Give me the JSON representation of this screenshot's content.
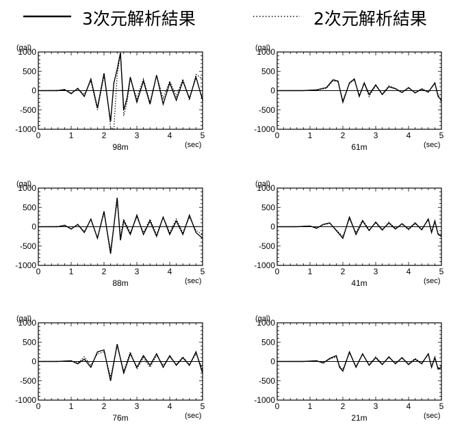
{
  "legend": {
    "solid_label": "3次元解析結果",
    "dotted_label": "2次元解析結果"
  },
  "colors": {
    "ink": "#000000",
    "background": "#ffffff"
  },
  "chart_data": [
    {
      "type": "line",
      "caption": "98m",
      "ylabel": "(gal)",
      "xlabel": "(sec)",
      "xlim": [
        0,
        5
      ],
      "ylim": [
        -1000,
        1000
      ],
      "xticks": [
        "0",
        "1",
        "2",
        "3",
        "4",
        "5"
      ],
      "yticks": [
        "1000",
        "500",
        "0",
        "-500",
        "-1000"
      ],
      "series": [
        {
          "style": "solid",
          "x": [
            0,
            0.6,
            0.8,
            1.0,
            1.2,
            1.4,
            1.6,
            1.8,
            2.0,
            2.1,
            2.2,
            2.3,
            2.4,
            2.5,
            2.6,
            2.7,
            2.8,
            3.0,
            3.2,
            3.4,
            3.6,
            3.8,
            4.0,
            4.2,
            4.4,
            4.6,
            4.8,
            5.0
          ],
          "y": [
            0,
            0,
            30,
            -80,
            60,
            -150,
            300,
            -450,
            450,
            -200,
            -800,
            200,
            550,
            980,
            -500,
            -200,
            350,
            -300,
            250,
            -350,
            400,
            -350,
            200,
            -250,
            250,
            -200,
            350,
            -250
          ]
        },
        {
          "style": "dotted",
          "x": [
            0,
            0.6,
            0.8,
            1.0,
            1.2,
            1.4,
            1.6,
            1.8,
            2.0,
            2.1,
            2.2,
            2.3,
            2.4,
            2.5,
            2.6,
            2.7,
            2.8,
            3.0,
            3.2,
            3.4,
            3.6,
            3.8,
            4.0,
            4.2,
            4.4,
            4.6,
            4.8,
            5.0
          ],
          "y": [
            0,
            10,
            20,
            -60,
            40,
            -100,
            250,
            -500,
            380,
            -150,
            -950,
            -1000,
            400,
            950,
            -650,
            -300,
            300,
            -200,
            300,
            -300,
            400,
            -200,
            250,
            -150,
            300,
            -250,
            420,
            300
          ]
        }
      ]
    },
    {
      "type": "line",
      "caption": "61m",
      "ylabel": "(gal)",
      "xlabel": "(sec)",
      "xlim": [
        0,
        5
      ],
      "ylim": [
        -1000,
        1000
      ],
      "xticks": [
        "0",
        "1",
        "2",
        "3",
        "4",
        "5"
      ],
      "yticks": [
        "1000",
        "500",
        "0",
        "-500",
        "-1000"
      ],
      "series": [
        {
          "style": "solid",
          "x": [
            0,
            0.8,
            1.2,
            1.5,
            1.7,
            1.85,
            2.0,
            2.2,
            2.35,
            2.5,
            2.65,
            2.8,
            3.0,
            3.2,
            3.4,
            3.6,
            3.8,
            4.0,
            4.2,
            4.4,
            4.6,
            4.8,
            4.9,
            5.0
          ],
          "y": [
            0,
            0,
            20,
            80,
            280,
            250,
            -300,
            200,
            300,
            -150,
            200,
            -100,
            150,
            -100,
            100,
            50,
            -50,
            80,
            -60,
            40,
            -40,
            200,
            -150,
            -250
          ]
        },
        {
          "style": "dotted",
          "x": [
            0,
            0.8,
            1.2,
            1.5,
            1.7,
            1.85,
            2.0,
            2.2,
            2.35,
            2.5,
            2.65,
            2.8,
            3.0,
            3.2,
            3.4,
            3.6,
            3.8,
            4.0,
            4.2,
            4.4,
            4.6,
            4.8,
            4.9,
            5.0
          ],
          "y": [
            0,
            5,
            15,
            60,
            250,
            230,
            -250,
            180,
            280,
            -120,
            180,
            -150,
            120,
            -80,
            120,
            60,
            -40,
            60,
            -50,
            50,
            -30,
            180,
            -100,
            -300
          ]
        }
      ]
    },
    {
      "type": "line",
      "caption": "88m",
      "ylabel": "(gal)",
      "xlabel": "(sec)",
      "xlim": [
        0,
        5
      ],
      "ylim": [
        -1000,
        1000
      ],
      "xticks": [
        "0",
        "1",
        "2",
        "3",
        "4",
        "5"
      ],
      "yticks": [
        "1000",
        "500",
        "0",
        "-500",
        "-1000"
      ],
      "series": [
        {
          "style": "solid",
          "x": [
            0,
            0.6,
            0.8,
            1.0,
            1.2,
            1.4,
            1.6,
            1.8,
            2.0,
            2.2,
            2.4,
            2.5,
            2.6,
            2.8,
            3.0,
            3.2,
            3.4,
            3.6,
            3.8,
            4.0,
            4.2,
            4.4,
            4.6,
            4.8,
            5.0
          ],
          "y": [
            0,
            0,
            40,
            -60,
            60,
            -150,
            200,
            -300,
            400,
            -700,
            750,
            -350,
            150,
            -200,
            300,
            -200,
            150,
            -250,
            250,
            -200,
            150,
            -200,
            300,
            -150,
            -300
          ]
        },
        {
          "style": "dotted",
          "x": [
            0,
            0.6,
            0.8,
            1.0,
            1.2,
            1.4,
            1.6,
            1.8,
            2.0,
            2.2,
            2.4,
            2.5,
            2.6,
            2.8,
            3.0,
            3.2,
            3.4,
            3.6,
            3.8,
            4.0,
            4.2,
            4.4,
            4.6,
            4.8,
            5.0
          ],
          "y": [
            0,
            10,
            30,
            -50,
            50,
            -120,
            180,
            -280,
            350,
            -600,
            650,
            -250,
            200,
            -150,
            250,
            -150,
            200,
            -200,
            250,
            -150,
            200,
            -150,
            250,
            -100,
            -200
          ]
        }
      ]
    },
    {
      "type": "line",
      "caption": "41m",
      "ylabel": "(gal)",
      "xlabel": "(sec)",
      "xlim": [
        0,
        5
      ],
      "ylim": [
        -1000,
        1000
      ],
      "xticks": [
        "0",
        "1",
        "2",
        "3",
        "4",
        "5"
      ],
      "yticks": [
        "1000",
        "500",
        "0",
        "-500",
        "-1000"
      ],
      "series": [
        {
          "style": "solid",
          "x": [
            0,
            0.6,
            1.0,
            1.2,
            1.4,
            1.6,
            1.8,
            2.0,
            2.2,
            2.4,
            2.6,
            2.8,
            3.0,
            3.2,
            3.4,
            3.6,
            3.8,
            4.0,
            4.2,
            4.4,
            4.6,
            4.7,
            4.8,
            4.9,
            5.0
          ],
          "y": [
            0,
            0,
            20,
            -40,
            60,
            100,
            -100,
            -300,
            250,
            -200,
            150,
            -100,
            120,
            -80,
            100,
            -60,
            80,
            -60,
            100,
            -80,
            200,
            -150,
            150,
            -200,
            -250
          ]
        },
        {
          "style": "dotted",
          "x": [
            0,
            0.6,
            1.0,
            1.2,
            1.4,
            1.6,
            1.8,
            2.0,
            2.2,
            2.4,
            2.6,
            2.8,
            3.0,
            3.2,
            3.4,
            3.6,
            3.8,
            4.0,
            4.2,
            4.4,
            4.6,
            4.7,
            4.8,
            4.9,
            5.0
          ],
          "y": [
            0,
            5,
            15,
            -30,
            50,
            90,
            -80,
            -250,
            200,
            -150,
            180,
            -80,
            100,
            -100,
            120,
            -40,
            60,
            -80,
            80,
            -60,
            180,
            -120,
            120,
            -180,
            -200
          ]
        }
      ]
    },
    {
      "type": "line",
      "caption": "76m",
      "ylabel": "(gal)",
      "xlabel": "(sec)",
      "xlim": [
        0,
        5
      ],
      "ylim": [
        -1000,
        1000
      ],
      "xticks": [
        "0",
        "1",
        "2",
        "3",
        "4",
        "5"
      ],
      "yticks": [
        "1000",
        "500",
        "0",
        "-500",
        "-1000"
      ],
      "series": [
        {
          "style": "solid",
          "x": [
            0,
            0.6,
            1.0,
            1.2,
            1.4,
            1.6,
            1.8,
            2.0,
            2.2,
            2.4,
            2.6,
            2.8,
            3.0,
            3.2,
            3.4,
            3.6,
            3.8,
            4.0,
            4.2,
            4.4,
            4.6,
            4.8,
            5.0
          ],
          "y": [
            0,
            0,
            20,
            -60,
            60,
            -150,
            250,
            300,
            -500,
            450,
            -300,
            200,
            -150,
            150,
            -100,
            200,
            -150,
            150,
            -100,
            100,
            -100,
            250,
            -300
          ]
        },
        {
          "style": "dotted",
          "x": [
            0,
            0.6,
            1.0,
            1.2,
            1.4,
            1.6,
            1.8,
            2.0,
            2.2,
            2.4,
            2.6,
            2.8,
            3.0,
            3.2,
            3.4,
            3.6,
            3.8,
            4.0,
            4.2,
            4.4,
            4.6,
            4.8,
            5.0
          ],
          "y": [
            0,
            5,
            15,
            -40,
            120,
            -100,
            200,
            250,
            -400,
            400,
            -250,
            250,
            -200,
            100,
            -150,
            150,
            -100,
            120,
            -80,
            120,
            -80,
            200,
            -200
          ]
        }
      ]
    },
    {
      "type": "line",
      "caption": "21m",
      "ylabel": "(gal)",
      "xlabel": "(sec)",
      "xlim": [
        0,
        5
      ],
      "ylim": [
        -1000,
        1000
      ],
      "xticks": [
        "0",
        "1",
        "2",
        "3",
        "4",
        "5"
      ],
      "yticks": [
        "1000",
        "500",
        "0",
        "-500",
        "-1000"
      ],
      "series": [
        {
          "style": "solid",
          "x": [
            0,
            0.8,
            1.2,
            1.4,
            1.6,
            1.8,
            1.9,
            2.0,
            2.2,
            2.4,
            2.6,
            2.8,
            3.0,
            3.2,
            3.4,
            3.6,
            3.8,
            4.0,
            4.2,
            4.4,
            4.6,
            4.7,
            4.8,
            4.9,
            5.0
          ],
          "y": [
            0,
            0,
            20,
            -40,
            80,
            150,
            -150,
            -250,
            250,
            -150,
            200,
            -100,
            100,
            -80,
            120,
            -60,
            100,
            -80,
            60,
            -60,
            200,
            -150,
            100,
            -200,
            -150
          ]
        },
        {
          "style": "dotted",
          "x": [
            0,
            0.8,
            1.2,
            1.4,
            1.6,
            1.8,
            1.9,
            2.0,
            2.2,
            2.4,
            2.6,
            2.8,
            3.0,
            3.2,
            3.4,
            3.6,
            3.8,
            4.0,
            4.2,
            4.4,
            4.6,
            4.7,
            4.8,
            4.9,
            5.0
          ],
          "y": [
            0,
            5,
            10,
            -30,
            60,
            120,
            -120,
            -200,
            220,
            -120,
            180,
            -80,
            120,
            -60,
            100,
            -40,
            80,
            -60,
            80,
            -40,
            180,
            -120,
            120,
            -180,
            -100
          ]
        }
      ]
    }
  ]
}
